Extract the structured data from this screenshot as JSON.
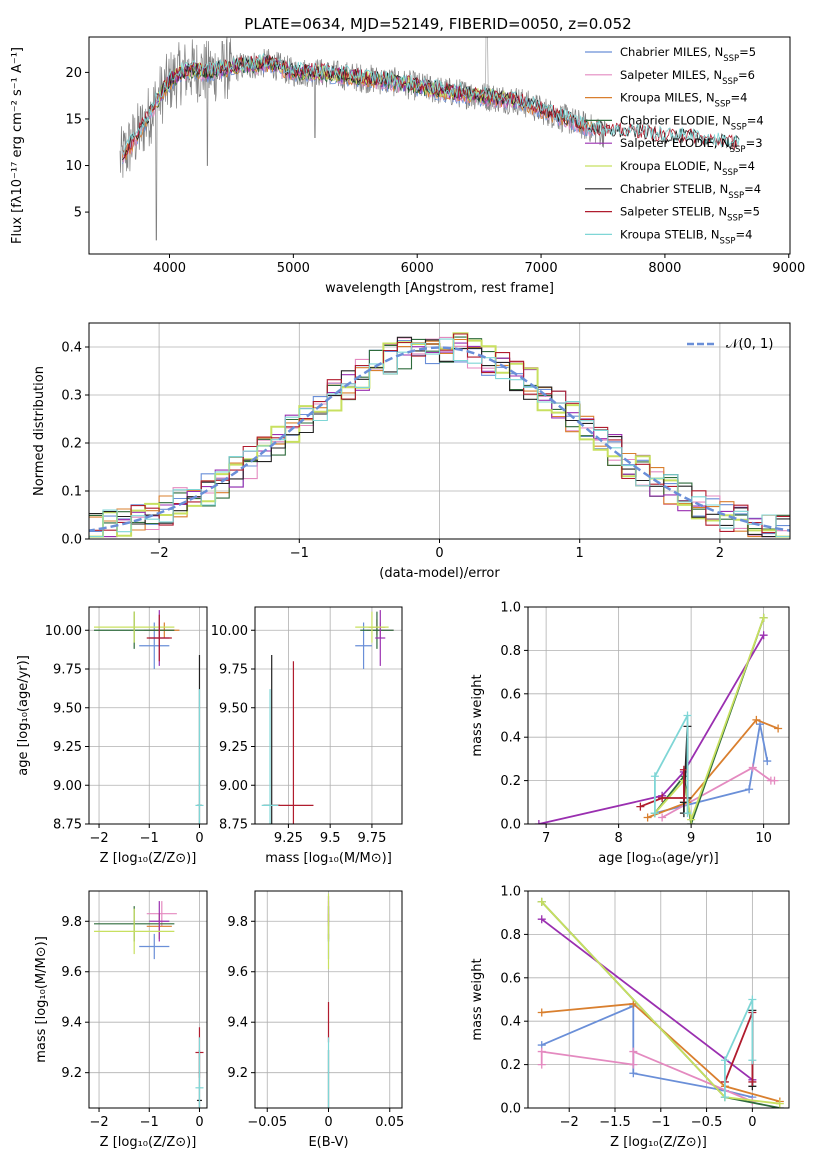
{
  "title": "PLATE=0634, MJD=52149, FIBERID=0050, z=0.052",
  "colors": {
    "data_gray": "#808080",
    "chab_miles": "#6a8fd8",
    "salp_miles": "#e48ac0",
    "krou_miles": "#d97f2e",
    "chab_elodie": "#2e6b3c",
    "salp_elodie": "#9a2fb0",
    "krou_elodie": "#c8e060",
    "chab_stelib": "#222222",
    "salp_stelib": "#b01c2e",
    "krou_stelib": "#7fd6d6",
    "gauss": "#6a8fd8"
  },
  "legend_spectrum": [
    {
      "key": "chab_miles",
      "text": "Chabrier MILES, N",
      "sub": "SSP",
      "val": "=5"
    },
    {
      "key": "salp_miles",
      "text": "Salpeter MILES, N",
      "sub": "SSP",
      "val": "=6"
    },
    {
      "key": "krou_miles",
      "text": "Kroupa MILES, N",
      "sub": "SSP",
      "val": "=4"
    },
    {
      "key": "chab_elodie",
      "text": "Chabrier ELODIE, N",
      "sub": "SSP",
      "val": "=4"
    },
    {
      "key": "salp_elodie",
      "text": "Salpeter ELODIE, N",
      "sub": "SSP",
      "val": "=3"
    },
    {
      "key": "krou_elodie",
      "text": "Kroupa ELODIE, N",
      "sub": "SSP",
      "val": "=4"
    },
    {
      "key": "chab_stelib",
      "text": "Chabrier STELIB, N",
      "sub": "SSP",
      "val": "=4"
    },
    {
      "key": "salp_stelib",
      "text": "Salpeter STELIB, N",
      "sub": "SSP",
      "val": "=5"
    },
    {
      "key": "krou_stelib",
      "text": "Kroupa STELIB, N",
      "sub": "SSP",
      "val": "=4"
    }
  ],
  "chart_data": [
    {
      "id": "spectrum",
      "type": "line",
      "xlabel": "wavelength [Angstrom, rest frame]",
      "ylabel": "Flux [fλ10⁻¹⁷ erg cm⁻² s⁻¹ A⁻¹]",
      "xlim": [
        3350,
        9010
      ],
      "ylim": [
        0.5,
        23.8
      ],
      "xticks": [
        4000,
        5000,
        6000,
        7000,
        8000,
        9000
      ],
      "yticks": [
        5,
        10,
        15,
        20
      ],
      "continuum": {
        "x": [
          3600,
          3700,
          3800,
          3900,
          4000,
          4100,
          4200,
          4300,
          4500,
          4800,
          5000,
          5200,
          5500,
          5800,
          6000,
          6200,
          6500,
          6800,
          7000,
          7300,
          7500
        ],
        "y": [
          10.5,
          12.5,
          14.5,
          17.0,
          19.0,
          20.0,
          20.3,
          20.0,
          20.5,
          21.0,
          20.0,
          20.0,
          19.5,
          19.0,
          18.5,
          18.0,
          17.5,
          17.0,
          16.0,
          14.5,
          13.5
        ]
      },
      "model_tail": {
        "x": [
          7400,
          7600,
          7800,
          8000,
          8200,
          8400,
          8600
        ],
        "y": [
          14.0,
          13.5,
          13.5,
          13.0,
          13.0,
          12.5,
          12.2
        ]
      }
    },
    {
      "id": "residuals",
      "type": "bar",
      "xlabel": "(data-model)/error",
      "ylabel": "Normed distribution",
      "xlim": [
        -2.5,
        2.5
      ],
      "ylim": [
        0,
        0.45
      ],
      "xticks": [
        -2,
        -1,
        0,
        1,
        2
      ],
      "yticks": [
        0.0,
        0.1,
        0.2,
        0.3,
        0.4
      ],
      "bin_width": 0.1,
      "gauss_label": "𝒩(0, 1)"
    },
    {
      "id": "age_vs_Z",
      "type": "scatter",
      "xlabel": "Z [log₁₀(Z/Z⊙)]",
      "ylabel": "age  [log₁₀(age/yr)]",
      "xlim": [
        -2.2,
        0.15
      ],
      "ylim": [
        8.75,
        10.15
      ],
      "xticks": [
        -2,
        -1,
        0
      ],
      "yticks": [
        8.75,
        9.0,
        9.25,
        9.5,
        9.75,
        10.0
      ],
      "points": [
        {
          "s": "chab_miles",
          "x": -0.9,
          "y": 9.9,
          "xe": 0.3,
          "ye": 0.15
        },
        {
          "s": "salp_miles",
          "x": -0.8,
          "y": 10.0,
          "xe": 0.3,
          "ye": 0.05
        },
        {
          "s": "krou_miles",
          "x": -0.7,
          "y": 10.0,
          "xe": 0.3,
          "ye": 0.05
        },
        {
          "s": "chab_elodie",
          "x": -1.3,
          "y": 10.0,
          "xe": 0.8,
          "ye": 0.12
        },
        {
          "s": "salp_elodie",
          "x": -0.8,
          "y": 9.95,
          "xe": 0.2,
          "ye": 0.18
        },
        {
          "s": "krou_elodie",
          "x": -1.3,
          "y": 10.02,
          "xe": 0.8,
          "ye": 0.1
        },
        {
          "s": "chab_stelib",
          "x": 0.0,
          "y": 8.87,
          "xe": 0.05,
          "ye": 0.97
        },
        {
          "s": "salp_stelib",
          "x": -0.8,
          "y": 9.95,
          "xe": 0.25,
          "ye": 0.15
        },
        {
          "s": "krou_stelib",
          "x": 0.0,
          "y": 8.87,
          "xe": 0.08,
          "ye": 0.75
        }
      ]
    },
    {
      "id": "age_vs_mass",
      "type": "scatter",
      "xlabel": "mass [log₁₀(M/M⊙)]",
      "xlim": [
        9.05,
        9.93
      ],
      "ylim": [
        8.75,
        10.15
      ],
      "xticks": [
        9.25,
        9.5,
        9.75
      ],
      "yticks": [
        8.75,
        9.0,
        9.25,
        9.5,
        9.75,
        10.0
      ],
      "points": [
        {
          "s": "chab_miles",
          "x": 9.7,
          "y": 9.9,
          "xe": 0.05,
          "ye": 0.15
        },
        {
          "s": "salp_miles",
          "x": 9.8,
          "y": 10.0,
          "xe": 0.08,
          "ye": 0.05
        },
        {
          "s": "krou_miles",
          "x": 9.78,
          "y": 10.02,
          "xe": 0.05,
          "ye": 0.05
        },
        {
          "s": "chab_elodie",
          "x": 9.78,
          "y": 10.0,
          "xe": 0.1,
          "ye": 0.12
        },
        {
          "s": "salp_elodie",
          "x": 9.8,
          "y": 9.95,
          "xe": 0.03,
          "ye": 0.18
        },
        {
          "s": "krou_elodie",
          "x": 9.75,
          "y": 10.02,
          "xe": 0.1,
          "ye": 0.1
        },
        {
          "s": "chab_stelib",
          "x": 9.15,
          "y": 8.87,
          "xe": 0.05,
          "ye": 0.97
        },
        {
          "s": "salp_stelib",
          "x": 9.28,
          "y": 8.87,
          "xe": 0.12,
          "ye": 0.93
        },
        {
          "s": "krou_stelib",
          "x": 9.14,
          "y": 8.87,
          "xe": 0.05,
          "ye": 0.75
        }
      ]
    },
    {
      "id": "mass_vs_Z",
      "type": "scatter",
      "xlabel": "Z [log₁₀(Z/Z⊙)]",
      "ylabel": "mass [log₁₀(M/M⊙)]",
      "xlim": [
        -2.2,
        0.15
      ],
      "ylim": [
        9.06,
        9.92
      ],
      "xticks": [
        -2,
        -1,
        0
      ],
      "yticks": [
        9.2,
        9.4,
        9.6,
        9.8
      ],
      "points": [
        {
          "s": "chab_miles",
          "x": -0.9,
          "y": 9.7,
          "xe": 0.3,
          "ye": 0.05
        },
        {
          "s": "salp_miles",
          "x": -0.75,
          "y": 9.83,
          "xe": 0.3,
          "ye": 0.05
        },
        {
          "s": "krou_miles",
          "x": -0.8,
          "y": 9.78,
          "xe": 0.25,
          "ye": 0.05
        },
        {
          "s": "chab_elodie",
          "x": -1.3,
          "y": 9.79,
          "xe": 0.8,
          "ye": 0.07
        },
        {
          "s": "salp_elodie",
          "x": -0.8,
          "y": 9.8,
          "xe": 0.2,
          "ye": 0.08
        },
        {
          "s": "krou_elodie",
          "x": -1.3,
          "y": 9.76,
          "xe": 0.8,
          "ye": 0.09
        },
        {
          "s": "chab_stelib",
          "x": 0.0,
          "y": 9.09,
          "xe": 0.05,
          "ye": 0.2
        },
        {
          "s": "salp_stelib",
          "x": 0.0,
          "y": 9.28,
          "xe": 0.08,
          "ye": 0.1
        },
        {
          "s": "krou_stelib",
          "x": 0.0,
          "y": 9.14,
          "xe": 0.08,
          "ye": 0.2
        }
      ]
    },
    {
      "id": "mass_vs_EBV",
      "type": "scatter",
      "xlabel": "E(B-V)",
      "xlim": [
        -0.06,
        0.06
      ],
      "ylim": [
        9.06,
        9.92
      ],
      "xticks": [
        -0.05,
        0.0,
        0.05
      ],
      "yticks": [
        9.2,
        9.4,
        9.6,
        9.8
      ],
      "points": [
        {
          "s": "chab_miles",
          "x": 0.0,
          "y": 9.7,
          "xe": 0,
          "ye": 0.05
        },
        {
          "s": "salp_miles",
          "x": 0.0,
          "y": 9.83,
          "xe": 0,
          "ye": 0.05
        },
        {
          "s": "krou_miles",
          "x": 0.0,
          "y": 9.78,
          "xe": 0,
          "ye": 0.05
        },
        {
          "s": "chab_elodie",
          "x": 0.0,
          "y": 9.79,
          "xe": 0,
          "ye": 0.07
        },
        {
          "s": "salp_elodie",
          "x": 0.0,
          "y": 9.85,
          "xe": 0,
          "ye": 0.05
        },
        {
          "s": "krou_elodie",
          "x": 0.0,
          "y": 9.76,
          "xe": 0,
          "ye": 0.15
        },
        {
          "s": "chab_stelib",
          "x": 0.0,
          "y": 9.09,
          "xe": 0,
          "ye": 0.2
        },
        {
          "s": "salp_stelib",
          "x": 0.0,
          "y": 9.4,
          "xe": 0,
          "ye": 0.08
        },
        {
          "s": "krou_stelib",
          "x": 0.0,
          "y": 9.14,
          "xe": 0,
          "ye": 0.2
        }
      ]
    },
    {
      "id": "weight_vs_age",
      "type": "line",
      "xlabel": "age  [log₁₀(age/yr)]",
      "ylabel": "mass weight",
      "xlim": [
        6.75,
        10.35
      ],
      "ylim": [
        0,
        1.0
      ],
      "xticks": [
        7,
        8,
        9,
        10
      ],
      "yticks": [
        0.0,
        0.2,
        0.4,
        0.6,
        0.8,
        1.0
      ],
      "series": [
        {
          "s": "chab_miles",
          "x": [
            8.5,
            9.8,
            9.95,
            10.05
          ],
          "y": [
            0.05,
            0.16,
            0.46,
            0.29
          ]
        },
        {
          "s": "salp_miles",
          "x": [
            8.6,
            9.85,
            10.1,
            10.15
          ],
          "y": [
            0.03,
            0.26,
            0.2,
            0.2
          ]
        },
        {
          "s": "krou_miles",
          "x": [
            8.4,
            8.95,
            9.9,
            10.2
          ],
          "y": [
            0.03,
            0.1,
            0.48,
            0.44
          ]
        },
        {
          "s": "chab_elodie",
          "x": [
            8.5,
            8.9,
            9.0,
            10.0
          ],
          "y": [
            0.05,
            0.22,
            0.0,
            0.95
          ]
        },
        {
          "s": "salp_elodie",
          "x": [
            6.9,
            8.6,
            8.9,
            10.0
          ],
          "y": [
            0.0,
            0.13,
            0.24,
            0.87
          ]
        },
        {
          "s": "krou_elodie",
          "x": [
            8.5,
            8.9,
            9.0,
            10.0
          ],
          "y": [
            0.05,
            0.2,
            0.02,
            0.95
          ]
        },
        {
          "s": "chab_stelib",
          "x": [
            8.9,
            8.9,
            8.95,
            8.95
          ],
          "y": [
            0.05,
            0.1,
            0.45,
            0.12
          ]
        },
        {
          "s": "salp_stelib",
          "x": [
            8.3,
            8.6,
            8.9,
            8.9
          ],
          "y": [
            0.08,
            0.12,
            0.12,
            0.25
          ]
        },
        {
          "s": "krou_stelib",
          "x": [
            8.5,
            8.5,
            8.95,
            8.95
          ],
          "y": [
            0.05,
            0.22,
            0.5,
            0.05
          ]
        }
      ]
    },
    {
      "id": "weight_vs_Z",
      "type": "line",
      "xlabel": "Z [log₁₀(Z/Z⊙)]",
      "ylabel": "mass weight",
      "xlim": [
        -2.45,
        0.4
      ],
      "ylim": [
        0,
        1.0
      ],
      "xticks": [
        -2.0,
        -1.5,
        -1.0,
        -0.5,
        0.0
      ],
      "yticks": [
        0.0,
        0.2,
        0.4,
        0.6,
        0.8,
        1.0
      ],
      "series": [
        {
          "s": "chab_miles",
          "x": [
            -2.3,
            -1.3,
            -1.3,
            -0.3,
            0.0
          ],
          "y": [
            0.29,
            0.47,
            0.16,
            0.08,
            0.05
          ]
        },
        {
          "s": "salp_miles",
          "x": [
            -2.3,
            -2.3,
            -1.3,
            -1.3,
            0.0
          ],
          "y": [
            0.2,
            0.26,
            0.2,
            0.26,
            0.03
          ]
        },
        {
          "s": "krou_miles",
          "x": [
            -2.3,
            -1.3,
            -0.3,
            0.3
          ],
          "y": [
            0.44,
            0.48,
            0.1,
            0.03
          ]
        },
        {
          "s": "chab_elodie",
          "x": [
            -2.3,
            -0.3,
            0.3
          ],
          "y": [
            0.95,
            0.05,
            0.0
          ]
        },
        {
          "s": "salp_elodie",
          "x": [
            -2.3,
            0.0
          ],
          "y": [
            0.87,
            0.13
          ]
        },
        {
          "s": "krou_elodie",
          "x": [
            -2.3,
            -0.3,
            0.3
          ],
          "y": [
            0.95,
            0.05,
            0.02
          ]
        },
        {
          "s": "chab_stelib",
          "x": [
            0.0,
            0.0
          ],
          "y": [
            0.45,
            0.1
          ]
        },
        {
          "s": "salp_stelib",
          "x": [
            -0.3,
            0.0,
            0.0
          ],
          "y": [
            0.12,
            0.44,
            0.12
          ]
        },
        {
          "s": "krou_stelib",
          "x": [
            -0.3,
            -0.3,
            0.0,
            0.0
          ],
          "y": [
            0.05,
            0.22,
            0.5,
            0.22
          ]
        }
      ]
    }
  ]
}
